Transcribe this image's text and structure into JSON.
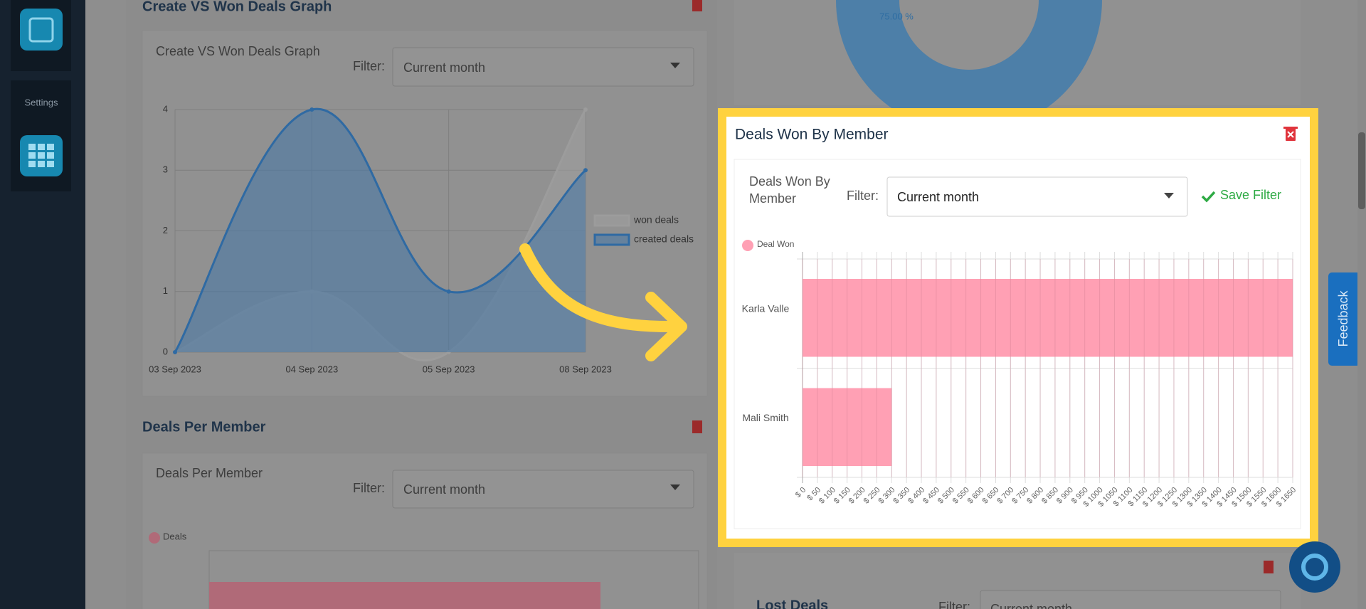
{
  "sidebar": {
    "settings_label": "Settings"
  },
  "panels": {
    "create_vs_won": {
      "title": "Create VS Won Deals Graph",
      "card_title": "Create VS Won Deals Graph",
      "filter_label": "Filter:",
      "filter_value": "Current month"
    },
    "deals_per_member": {
      "title": "Deals Per Member",
      "card_title": "Deals Per Member",
      "filter_label": "Filter:",
      "filter_value": "Current month",
      "legend": "Deals"
    },
    "donut": {
      "label": "75.00 %"
    },
    "deals_won_by_member": {
      "title": "Deals Won By Member",
      "card_title": "Deals Won By Member",
      "filter_label": "Filter:",
      "filter_value": "Current month",
      "save_filter": "Save Filter"
    },
    "lost_deals": {
      "title": "Lost Deals",
      "filter_label": "Filter:",
      "filter_value": "Current month"
    },
    "feedback": "Feedback"
  },
  "chart_data": [
    {
      "type": "line",
      "categories": [
        "03 Sep 2023",
        "04 Sep 2023",
        "05 Sep 2023",
        "08 Sep 2023"
      ],
      "series": [
        {
          "name": "won deals",
          "color": "#9c9c9c",
          "values": [
            0,
            1,
            0,
            4
          ]
        },
        {
          "name": "created deals",
          "color": "#2f6aa3",
          "values": [
            0,
            4,
            1,
            3
          ]
        }
      ],
      "ylim": [
        0,
        4
      ],
      "yticks": [
        0,
        1,
        2,
        3,
        4
      ],
      "grid": true
    },
    {
      "type": "bar",
      "orientation": "horizontal",
      "categories": [
        "Karla Valle",
        "Mali Smith"
      ],
      "series": [
        {
          "name": "Deal Won",
          "color": "#ffa0b4",
          "values": [
            1650,
            300
          ]
        }
      ],
      "xlim": [
        0,
        1650
      ],
      "grid": true,
      "xticks": [
        {
          "value": 0,
          "label": "$ 0"
        },
        {
          "value": 50,
          "label": "$ 50"
        },
        {
          "value": 100,
          "label": "$ 100"
        },
        {
          "value": 150,
          "label": "$ 150"
        },
        {
          "value": 200,
          "label": "$ 200"
        },
        {
          "value": 250,
          "label": "$ 250"
        },
        {
          "value": 300,
          "label": "$ 300"
        },
        {
          "value": 350,
          "label": "$ 350"
        },
        {
          "value": 400,
          "label": "$ 400"
        },
        {
          "value": 450,
          "label": "$ 450"
        },
        {
          "value": 500,
          "label": "$ 500"
        },
        {
          "value": 550,
          "label": "$ 550"
        },
        {
          "value": 600,
          "label": "$ 600"
        },
        {
          "value": 650,
          "label": "$ 650"
        },
        {
          "value": 700,
          "label": "$ 700"
        },
        {
          "value": 750,
          "label": "$ 750"
        },
        {
          "value": 800,
          "label": "$ 800"
        },
        {
          "value": 850,
          "label": "$ 850"
        },
        {
          "value": 900,
          "label": "$ 900"
        },
        {
          "value": 950,
          "label": "$ 950"
        },
        {
          "value": 1000,
          "label": "$ 1000"
        },
        {
          "value": 1050,
          "label": "$ 1050"
        },
        {
          "value": 1100,
          "label": "$ 1100"
        },
        {
          "value": 1150,
          "label": "$ 1150"
        },
        {
          "value": 1200,
          "label": "$ 1200"
        },
        {
          "value": 1250,
          "label": "$ 1250"
        },
        {
          "value": 1300,
          "label": "$ 1300"
        },
        {
          "value": 1350,
          "label": "$ 1350"
        },
        {
          "value": 1400,
          "label": "$ 1400"
        },
        {
          "value": 1450,
          "label": "$ 1450"
        },
        {
          "value": 1500,
          "label": "$ 1500"
        },
        {
          "value": 1550,
          "label": "$ 1550"
        },
        {
          "value": 1600,
          "label": "$ 1600"
        },
        {
          "value": 1650,
          "label": "$ 1650"
        }
      ]
    }
  ]
}
